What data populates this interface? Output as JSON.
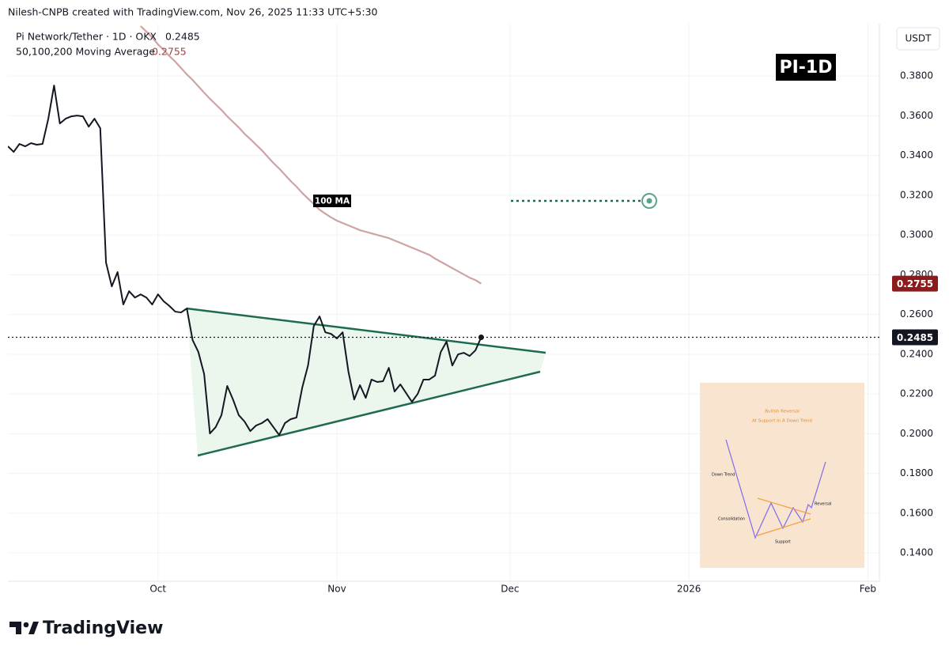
{
  "header": {
    "attribution": "Nilesh-CNPB created with TradingView.com, Nov 26, 2025 11:33 UTC+5:30"
  },
  "footer": {
    "brand": "TradingView"
  },
  "inset": {
    "title": "Bullish Reversal",
    "subtitle": "At Support In A Down Trend",
    "labels": [
      "Down Trend",
      "Consolidation",
      "Reversal",
      "Support"
    ]
  },
  "chart_data": {
    "type": "line",
    "y_label": "USDT",
    "annotations": [
      "PI-1D",
      "100 MA"
    ],
    "categories": [
      null,
      null,
      null,
      null,
      null,
      null,
      null,
      null,
      null,
      null,
      null,
      null,
      null,
      null,
      null,
      null,
      null,
      null,
      null,
      null,
      null,
      null,
      null,
      null,
      null,
      null,
      "Oct",
      null,
      null,
      null,
      null,
      null,
      null,
      null,
      null,
      null,
      null,
      null,
      null,
      null,
      null,
      null,
      null,
      null,
      null,
      null,
      null,
      null,
      null,
      null,
      null,
      null,
      null,
      null,
      null,
      null,
      null,
      "Nov",
      null,
      null,
      null,
      null,
      null,
      null,
      null,
      null,
      null,
      null,
      null,
      null,
      null,
      null,
      null,
      null,
      null,
      null,
      null,
      null,
      null,
      null,
      null,
      null,
      null,
      null,
      null,
      null,
      null,
      "Dec",
      null,
      null,
      null,
      null,
      null,
      null,
      null,
      null,
      null,
      null,
      null,
      null,
      null,
      null,
      null,
      null,
      null,
      null,
      null,
      null,
      null,
      null,
      null,
      null,
      null,
      null,
      null,
      null,
      null,
      null,
      "2026",
      null,
      null,
      null,
      null,
      null,
      null,
      null,
      null,
      null,
      null,
      null,
      null,
      null,
      null,
      null,
      null,
      null,
      null,
      null,
      null,
      null,
      null,
      null,
      null,
      null,
      null,
      null,
      null,
      null,
      null,
      "Feb",
      null,
      null
    ],
    "series": [
      {
        "name": "Pi Network/Tether · 1D · OKX",
        "color": "#131722",
        "values": [
          0.3446,
          0.3418,
          0.3458,
          0.3446,
          0.3462,
          0.3454,
          0.3458,
          0.3585,
          0.3752,
          0.3561,
          0.3585,
          0.3597,
          0.3601,
          0.3597,
          0.3545,
          0.3585,
          0.3537,
          0.2861,
          0.2741,
          0.2813,
          0.265,
          0.2717,
          0.2685,
          0.2701,
          0.2685,
          0.265,
          0.2701,
          0.2666,
          0.2642,
          0.2614,
          0.261,
          0.263,
          0.2471,
          0.2411,
          0.23,
          0.2001,
          0.2033,
          0.2093,
          0.224,
          0.2172,
          0.2093,
          0.2061,
          0.2013,
          0.2041,
          0.2053,
          0.2073,
          0.2033,
          0.1993,
          0.2053,
          0.2073,
          0.2081,
          0.2232,
          0.2343,
          0.2542,
          0.259,
          0.251,
          0.2502,
          0.2479,
          0.251,
          0.2312,
          0.2172,
          0.2244,
          0.218,
          0.2272,
          0.226,
          0.2264,
          0.2331,
          0.2212,
          0.2248,
          0.2204,
          0.216,
          0.22,
          0.2272,
          0.2272,
          0.2292,
          0.2411,
          0.2463,
          0.2343,
          0.2399,
          0.2407,
          0.2391,
          0.2419,
          0.2485,
          null,
          null,
          null,
          null,
          null,
          null,
          null,
          null,
          null,
          null,
          null,
          null,
          null,
          null,
          null,
          null,
          null,
          null,
          null,
          null,
          null,
          null,
          null,
          null,
          null,
          null,
          null,
          null,
          null,
          null,
          null,
          null,
          null,
          null,
          null,
          null,
          null,
          null,
          null,
          null,
          null,
          null,
          null,
          null,
          null,
          null,
          null,
          null,
          null,
          null,
          null,
          null,
          null,
          null,
          null,
          null,
          null,
          null,
          null,
          null,
          null,
          null,
          null,
          null,
          null,
          null,
          null,
          null,
          null
        ]
      },
      {
        "name": "50,100,200 Moving Average",
        "color": "#cfa3a3",
        "values": [
          null,
          null,
          null,
          null,
          null,
          null,
          null,
          null,
          null,
          null,
          null,
          null,
          null,
          null,
          null,
          null,
          null,
          null,
          null,
          null,
          null,
          null,
          null,
          0.4051,
          0.4023,
          0.3995,
          0.3959,
          0.3931,
          0.39,
          0.3872,
          0.384,
          0.3808,
          0.378,
          0.3748,
          0.3716,
          0.3685,
          0.3657,
          0.3629,
          0.3597,
          0.3569,
          0.3541,
          0.3509,
          0.3482,
          0.3454,
          0.3426,
          0.3394,
          0.3362,
          0.3334,
          0.3303,
          0.3271,
          0.3243,
          0.3211,
          0.3183,
          0.3155,
          0.3127,
          0.3107,
          0.3088,
          0.3072,
          0.306,
          0.3048,
          0.3036,
          0.3024,
          0.3016,
          0.3008,
          0.3,
          0.2992,
          0.2984,
          0.2972,
          0.296,
          0.2948,
          0.2936,
          0.2924,
          0.2912,
          0.29,
          0.2881,
          0.2865,
          0.2849,
          0.2833,
          0.2817,
          0.2801,
          0.2785,
          0.2773,
          0.2755,
          null,
          null,
          null,
          null,
          null,
          null,
          null,
          null,
          null,
          null,
          null,
          null,
          null,
          null,
          null,
          null,
          null,
          null,
          null,
          null,
          null,
          null,
          null,
          null,
          null,
          null,
          null,
          null,
          null,
          null,
          null,
          null,
          null,
          null,
          null,
          null,
          null,
          null,
          null,
          null,
          null,
          null,
          null,
          null,
          null,
          null,
          null,
          null,
          null,
          null,
          null,
          null,
          null,
          null,
          null,
          null,
          null,
          null,
          null,
          null,
          null,
          null,
          null,
          null,
          null,
          null,
          null,
          null,
          null
        ]
      }
    ],
    "ylim": [
      0.1257,
      0.4063
    ],
    "yticks": [
      {
        "value": 0.14,
        "label": "0.1400"
      },
      {
        "value": 0.16,
        "label": "0.1600"
      },
      {
        "value": 0.18,
        "label": "0.1800"
      },
      {
        "value": 0.2,
        "label": "0.2000"
      },
      {
        "value": 0.22,
        "label": "0.2200"
      },
      {
        "value": 0.24,
        "label": "0.2400"
      },
      {
        "value": 0.26,
        "label": "0.2600"
      },
      {
        "value": 0.28,
        "label": "0.2800"
      },
      {
        "value": 0.3,
        "label": "0.3000"
      },
      {
        "value": 0.32,
        "label": "0.3200"
      },
      {
        "value": 0.34,
        "label": "0.3400"
      },
      {
        "value": 0.36,
        "label": "0.3600"
      },
      {
        "value": 0.38,
        "label": "0.3800"
      }
    ],
    "grid": true
  }
}
